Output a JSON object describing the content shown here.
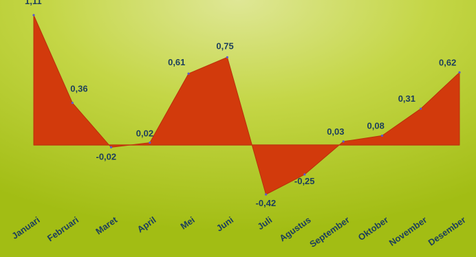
{
  "chart_data": {
    "type": "area",
    "title": "",
    "xlabel": "",
    "ylabel": "",
    "categories": [
      "Januari",
      "Februari",
      "Maret",
      "April",
      "Mei",
      "Juni",
      "Juli",
      "Agustus",
      "September",
      "Oktober",
      "November",
      "Desember"
    ],
    "series": [
      {
        "values": [
          1.11,
          0.36,
          -0.02,
          0.02,
          0.61,
          0.75,
          -0.42,
          -0.25,
          0.03,
          0.08,
          0.31,
          0.62
        ],
        "labels": [
          "1,11",
          "0,36",
          "-0,02",
          "0,02",
          "0,61",
          "0,75",
          "-0,42",
          "-0,25",
          "0,03",
          "0,08",
          "0,31",
          "0,62"
        ]
      }
    ],
    "ylim": [
      -0.42,
      1.11
    ],
    "grid": false,
    "legend": "none",
    "colors": {
      "area_fill": "#d23a0c",
      "area_stroke": "#b8320a",
      "baseline": "#c0390e",
      "text": "#1c3e5c",
      "background_top": "#d5e07a",
      "background_bottom": "#a6c118"
    }
  }
}
